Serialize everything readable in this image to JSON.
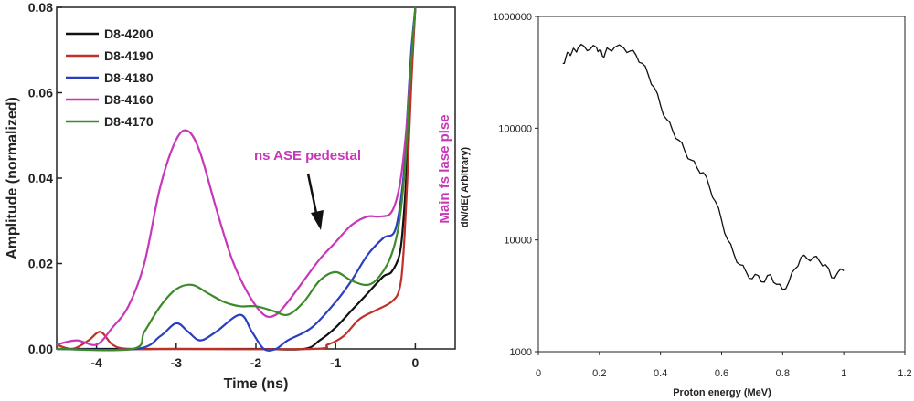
{
  "chart_data": [
    {
      "type": "line",
      "xlabel": "Time (ns)",
      "ylabel": "Amplitude (normalized)",
      "xlim": [
        -4.5,
        0.5
      ],
      "ylim": [
        0,
        0.08
      ],
      "x_ticks": [
        "-4",
        "-3",
        "-2",
        "-1",
        "0"
      ],
      "y_ticks": [
        "0.00",
        "0.02",
        "0.04",
        "0.06",
        "0.08"
      ],
      "legend_position": "top-left",
      "annotations": [
        {
          "text": "ns ASE pedestal",
          "color": "#c837b8"
        },
        {
          "text": "Main fs lase plse",
          "color": "#c837b8"
        }
      ],
      "series": [
        {
          "name": "D8-4200",
          "color": "#111111",
          "x": [
            -4.5,
            -3.5,
            -3.1,
            -3.0,
            -2.0,
            -1.4,
            -1.2,
            -1.0,
            -0.8,
            -0.6,
            -0.4,
            -0.3,
            -0.2,
            -0.15,
            -0.1,
            -0.05,
            0.0
          ],
          "y": [
            0.0,
            0.0,
            0.0,
            0.0,
            0.0,
            0.0,
            0.002,
            0.005,
            0.009,
            0.013,
            0.017,
            0.018,
            0.022,
            0.03,
            0.045,
            0.065,
            0.08
          ]
        },
        {
          "name": "D8-4190",
          "color": "#c0302a",
          "x": [
            -4.5,
            -4.3,
            -4.1,
            -3.95,
            -3.8,
            -3.6,
            -3.0,
            -1.3,
            -1.1,
            -0.9,
            -0.7,
            -0.5,
            -0.3,
            -0.2,
            -0.15,
            -0.1,
            -0.05,
            0.0
          ],
          "y": [
            0.001,
            0.0,
            0.002,
            0.004,
            0.001,
            0.0,
            0.0,
            0.0,
            0.001,
            0.003,
            0.007,
            0.009,
            0.011,
            0.014,
            0.022,
            0.04,
            0.062,
            0.08
          ]
        },
        {
          "name": "D8-4180",
          "color": "#2a3fbf",
          "x": [
            -4.5,
            -3.5,
            -3.2,
            -3.0,
            -2.85,
            -2.7,
            -2.5,
            -2.2,
            -2.05,
            -1.9,
            -1.75,
            -1.6,
            -1.3,
            -1.0,
            -0.8,
            -0.6,
            -0.4,
            -0.25,
            -0.15,
            -0.1,
            -0.05,
            0.0
          ],
          "y": [
            0.0,
            0.0,
            0.003,
            0.006,
            0.004,
            0.002,
            0.004,
            0.008,
            0.004,
            0.0,
            0.0,
            0.002,
            0.005,
            0.011,
            0.016,
            0.022,
            0.026,
            0.028,
            0.04,
            0.055,
            0.07,
            0.08
          ]
        },
        {
          "name": "D8-4160",
          "color": "#c837b8",
          "x": [
            -4.5,
            -4.25,
            -4.0,
            -3.8,
            -3.6,
            -3.4,
            -3.2,
            -3.0,
            -2.85,
            -2.7,
            -2.5,
            -2.3,
            -2.1,
            -1.9,
            -1.75,
            -1.6,
            -1.4,
            -1.2,
            -1.0,
            -0.8,
            -0.6,
            -0.45,
            -0.3,
            -0.2,
            -0.12,
            -0.06,
            0.0
          ],
          "y": [
            0.001,
            0.002,
            0.001,
            0.005,
            0.01,
            0.02,
            0.038,
            0.049,
            0.051,
            0.046,
            0.033,
            0.021,
            0.013,
            0.008,
            0.008,
            0.011,
            0.016,
            0.021,
            0.025,
            0.029,
            0.031,
            0.031,
            0.032,
            0.038,
            0.05,
            0.065,
            0.08
          ]
        },
        {
          "name": "D8-4170",
          "color": "#3d8a2a",
          "x": [
            -4.5,
            -3.55,
            -3.4,
            -3.2,
            -3.0,
            -2.8,
            -2.6,
            -2.4,
            -2.2,
            -2.0,
            -1.8,
            -1.6,
            -1.4,
            -1.2,
            -1.0,
            -0.8,
            -0.6,
            -0.45,
            -0.3,
            -0.2,
            -0.12,
            -0.06,
            0.0
          ],
          "y": [
            0.0,
            0.0,
            0.004,
            0.01,
            0.014,
            0.015,
            0.013,
            0.011,
            0.01,
            0.01,
            0.009,
            0.008,
            0.011,
            0.016,
            0.018,
            0.016,
            0.015,
            0.017,
            0.022,
            0.03,
            0.045,
            0.065,
            0.08
          ]
        }
      ]
    },
    {
      "type": "line",
      "xlabel": "Proton energy (MeV)",
      "ylabel": "dN/dE( Arbitrary)",
      "xlim": [
        0,
        1.2
      ],
      "ylim": [
        1000,
        1000000
      ],
      "yscale": "log",
      "x_ticks": [
        "0",
        "0.2",
        "0.4",
        "0.6",
        "0.8",
        "1",
        "1.2"
      ],
      "y_ticks": [
        "1000",
        "10000",
        "100000",
        "1000000"
      ],
      "series": [
        {
          "color": "#111111",
          "x": [
            0.08,
            0.09,
            0.1,
            0.11,
            0.12,
            0.13,
            0.15,
            0.17,
            0.19,
            0.2,
            0.21,
            0.22,
            0.23,
            0.25,
            0.28,
            0.3,
            0.32,
            0.34,
            0.36,
            0.38,
            0.4,
            0.42,
            0.44,
            0.46,
            0.48,
            0.5,
            0.52,
            0.54,
            0.56,
            0.58,
            0.6,
            0.62,
            0.64,
            0.66,
            0.68,
            0.7,
            0.72,
            0.74,
            0.76,
            0.78,
            0.8,
            0.82,
            0.84,
            0.86,
            0.88,
            0.9,
            0.92,
            0.94,
            0.96,
            0.98,
            1.0
          ],
          "y": [
            380000,
            430000,
            470000,
            480000,
            500000,
            520000,
            540000,
            510000,
            530000,
            500000,
            440000,
            480000,
            510000,
            530000,
            520000,
            490000,
            450000,
            380000,
            300000,
            230000,
            160000,
            120000,
            95000,
            78000,
            62000,
            52000,
            44000,
            40000,
            30000,
            22000,
            15000,
            10000,
            7500,
            6000,
            5200,
            4500,
            4800,
            4200,
            4900,
            4000,
            3600,
            4200,
            5500,
            7000,
            6800,
            7000,
            6500,
            6000,
            4600,
            5100,
            5300
          ]
        }
      ]
    }
  ]
}
